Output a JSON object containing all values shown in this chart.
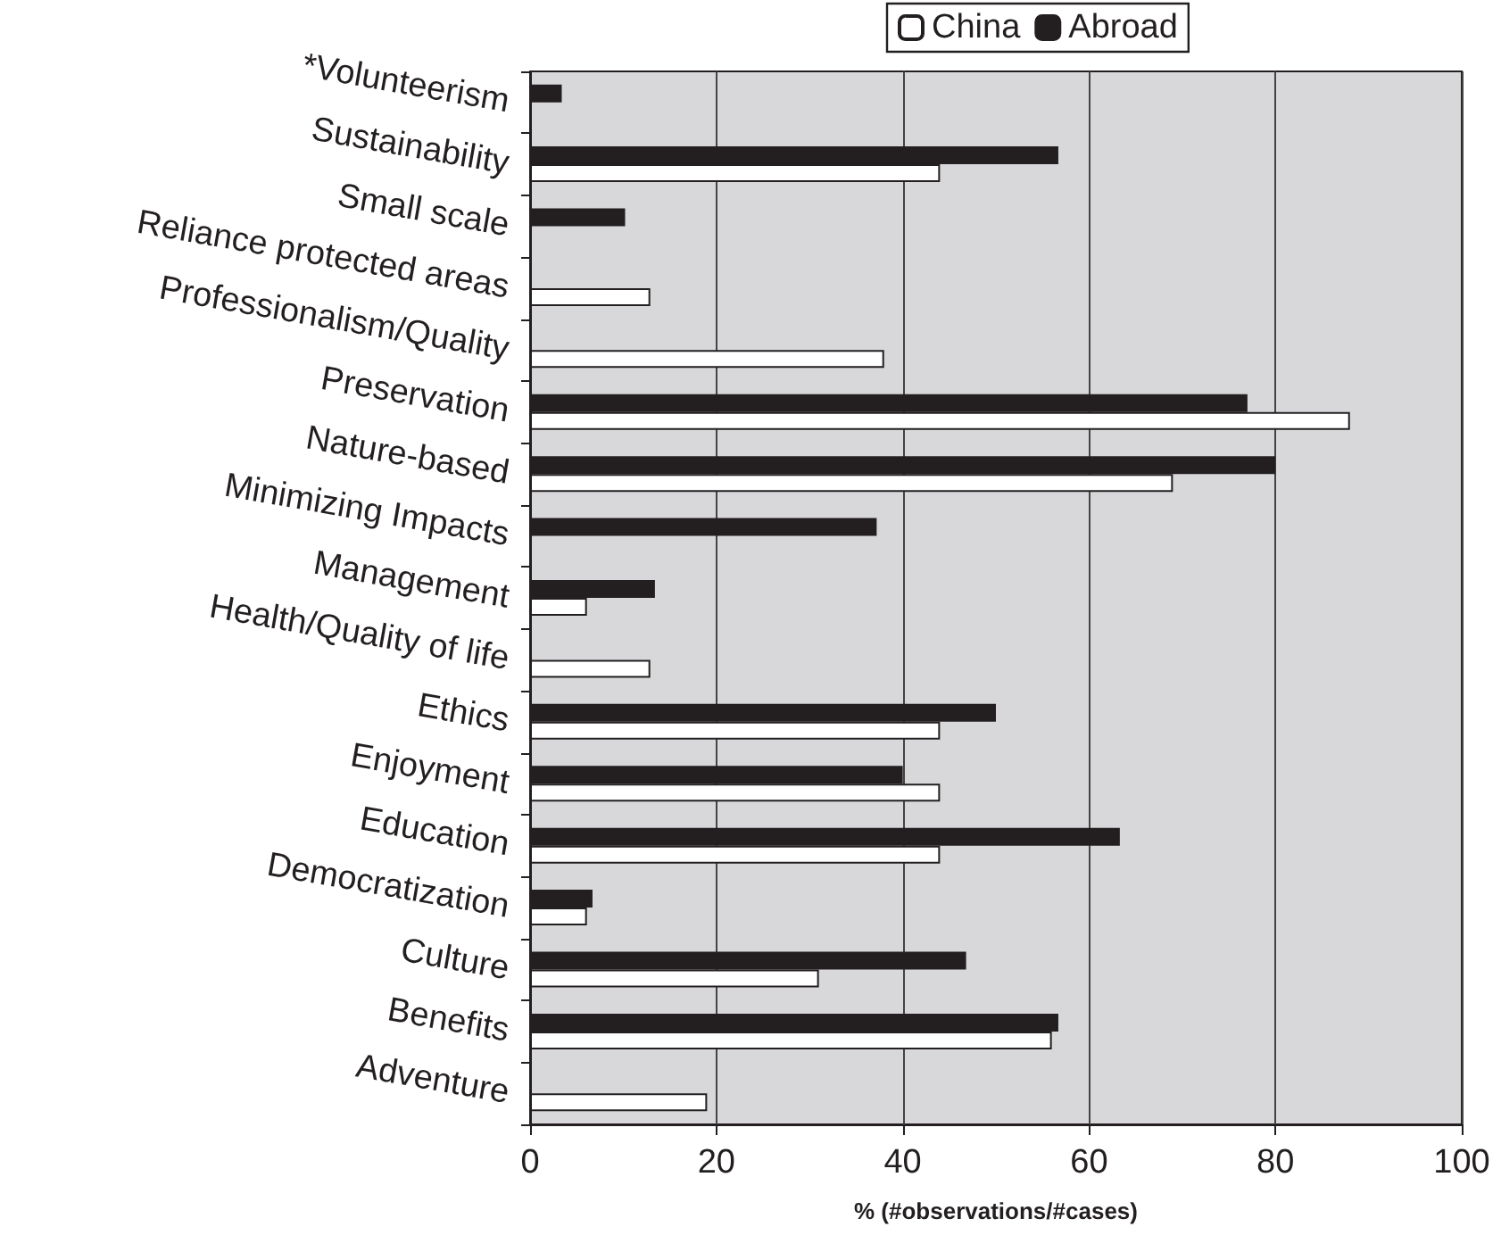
{
  "chart_data": {
    "type": "bar",
    "orientation": "horizontal",
    "xlabel": "% (#observations/#cases)",
    "categories": [
      "*Volunteerism",
      "Sustainability",
      "Small scale",
      "Reliance protected areas",
      "Professionalism/Quality",
      "Preservation",
      "Nature-based",
      "Minimizing Impacts",
      "Management",
      "Health/Quality of life",
      "Ethics",
      "Enjoyment",
      "Education",
      "Democratization",
      "Culture",
      "Benefits",
      "Adventure"
    ],
    "series": [
      {
        "name": "China",
        "color": "#ffffff",
        "values": [
          null,
          44,
          null,
          12.9,
          38,
          88,
          69,
          null,
          6.1,
          12.9,
          44,
          44,
          44,
          6.1,
          31,
          56,
          19
        ]
      },
      {
        "name": "Abroad",
        "color": "#231f20",
        "values": [
          3.4,
          56.7,
          10.2,
          null,
          null,
          77,
          80,
          37.2,
          13.4,
          null,
          50,
          40,
          63.3,
          6.7,
          46.8,
          56.7,
          null
        ]
      }
    ],
    "xlim": [
      0,
      100
    ],
    "xticks": [
      0,
      20,
      40,
      60,
      80,
      100
    ],
    "grid": "x",
    "legend": "top"
  }
}
